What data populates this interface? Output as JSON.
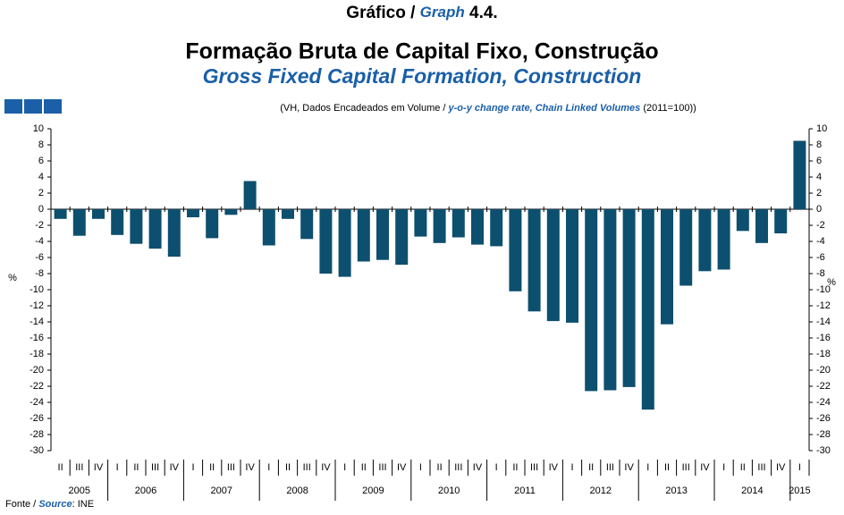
{
  "chart_data": {
    "type": "bar",
    "graph_label": {
      "pt": "Gráfico /",
      "en": "Graph",
      "number": "4.4."
    },
    "title": "Formação Bruta de Capital Fixo, Construção",
    "title_en": "Gross Fixed Capital Formation, Construction",
    "subtitle": {
      "pt": "(VH, Dados Encadeados em Volume /",
      "en": "y-o-y change rate, Chain Linked Volumes",
      "end": "(2011=100))"
    },
    "ylabel": "%",
    "categories": [
      "II",
      "III",
      "IV",
      "I",
      "II",
      "III",
      "IV",
      "I",
      "II",
      "III",
      "IV",
      "I",
      "II",
      "III",
      "IV",
      "I",
      "II",
      "III",
      "IV",
      "I",
      "II",
      "III",
      "IV",
      "I",
      "II",
      "III",
      "IV",
      "I",
      "II",
      "III",
      "IV",
      "I",
      "II",
      "III",
      "IV",
      "I",
      "II",
      "III",
      "IV",
      "I"
    ],
    "groups": [
      "2005",
      "2006",
      "2007",
      "2008",
      "2009",
      "2010",
      "2011",
      "2012",
      "2013",
      "2014",
      "2015"
    ],
    "values": [
      -1.2,
      -3.3,
      -1.2,
      -3.2,
      -4.3,
      -4.9,
      -5.9,
      -1.0,
      -3.6,
      -0.7,
      3.5,
      -4.5,
      -1.2,
      -3.7,
      -8.0,
      -8.4,
      -6.5,
      -6.3,
      -6.9,
      -3.4,
      -4.2,
      -3.5,
      -4.4,
      -4.6,
      -10.2,
      -12.7,
      -13.9,
      -14.1,
      -22.6,
      -22.5,
      -22.1,
      -24.9,
      -14.3,
      -9.5,
      -7.7,
      -7.5,
      -2.7,
      -4.2,
      -3.0,
      8.5
    ],
    "color": "#0d4f6e",
    "ylim": [
      -30,
      10
    ],
    "yticks": [
      10,
      8,
      6,
      4,
      2,
      0,
      -2,
      -4,
      -6,
      -8,
      -10,
      -12,
      -14,
      -16,
      -18,
      -20,
      -22,
      -24,
      -26,
      -28,
      -30
    ],
    "grid": false,
    "source": {
      "label": "Fonte /",
      "label_en": "Source",
      "text": ": INE"
    }
  }
}
